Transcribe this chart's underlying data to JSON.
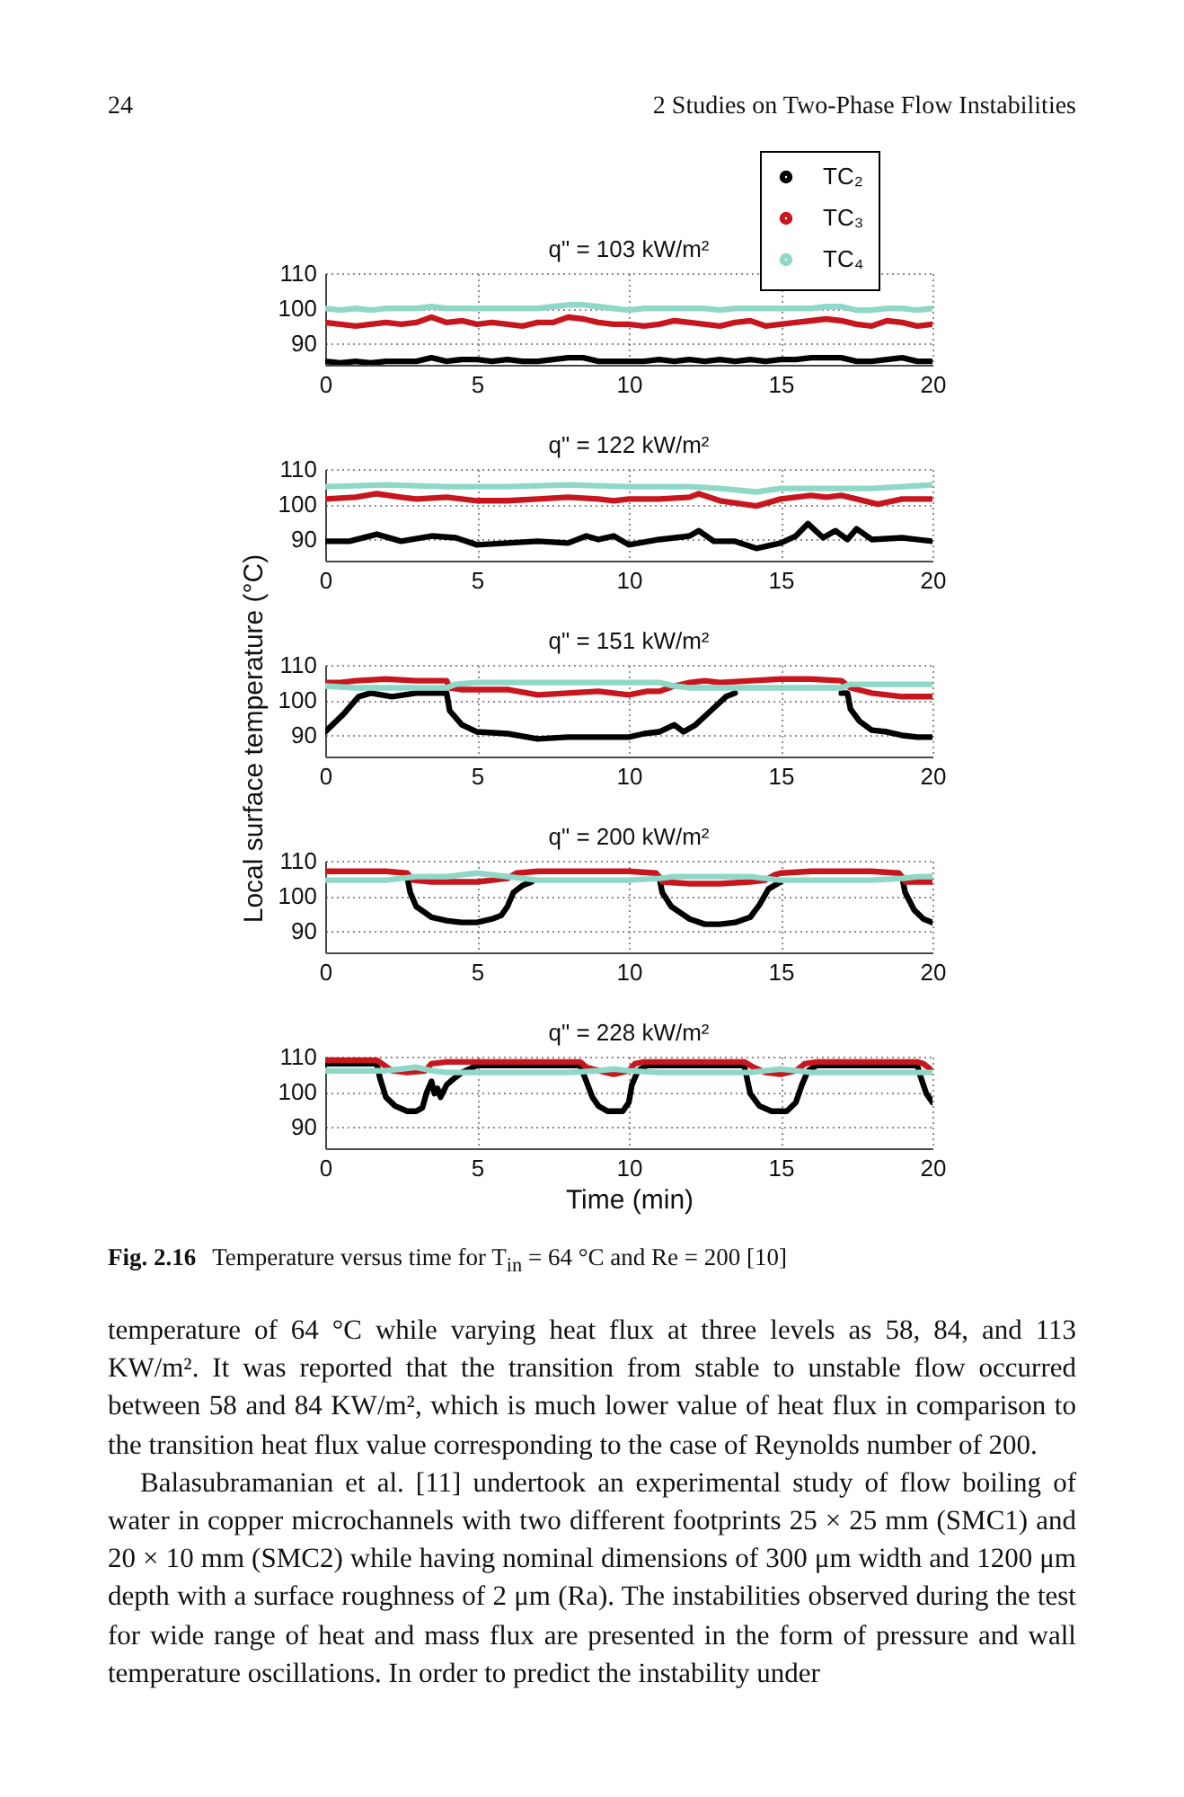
{
  "chart_data": [
    {
      "type": "line",
      "title": "q\" = 103 kW/m²",
      "x": [
        0,
        0.5,
        1,
        1.5,
        2,
        2.5,
        3,
        3.5,
        4,
        4.5,
        5,
        5.5,
        6,
        6.5,
        7,
        7.5,
        8,
        8.5,
        9,
        9.5,
        10,
        10.5,
        11,
        11.5,
        12,
        12.5,
        13,
        13.5,
        14,
        14.5,
        15,
        15.5,
        16,
        16.5,
        17,
        17.5,
        18,
        18.5,
        19,
        19.5,
        20
      ],
      "xlim": [
        0,
        20
      ],
      "xticks": [
        0,
        5,
        10,
        15,
        20
      ],
      "ylim": [
        84,
        110
      ],
      "yticks": [
        90,
        100,
        110
      ],
      "grid": true,
      "legend": "top right",
      "series": [
        {
          "name": "TC₂",
          "color": "#000000",
          "values": [
            85,
            84.5,
            85,
            84.5,
            85,
            85,
            85,
            86,
            85,
            85.5,
            85.5,
            85,
            85.5,
            85,
            85,
            85.5,
            86,
            86,
            85,
            85,
            85,
            85,
            85.5,
            85,
            85.5,
            85,
            85.5,
            85,
            85.5,
            85,
            85.5,
            85.5,
            86,
            86,
            86,
            85,
            85,
            85.5,
            86,
            85,
            85
          ]
        },
        {
          "name": "TC₃",
          "color": "#c8161e",
          "values": [
            96,
            95.5,
            95,
            95.5,
            96,
            95.5,
            96,
            97.5,
            96,
            96.5,
            95.5,
            96,
            95.5,
            95,
            96,
            96,
            97.5,
            97,
            96,
            95.5,
            95.5,
            95,
            95.5,
            96.5,
            96,
            95.5,
            95,
            96,
            96.5,
            95,
            95.5,
            96,
            96.5,
            97,
            96.5,
            95.5,
            95,
            96.5,
            96,
            95,
            95.5
          ]
        },
        {
          "name": "TC₄",
          "color": "#8fd8c8",
          "values": [
            100,
            99.5,
            100,
            99.5,
            100,
            100,
            100,
            100.5,
            100,
            100,
            100,
            100,
            100,
            100,
            100,
            100.5,
            101,
            101,
            100.5,
            100,
            99.5,
            100,
            100,
            100,
            100,
            100,
            99.5,
            100,
            100,
            100,
            100,
            100,
            100,
            100.5,
            100.5,
            99.5,
            99.5,
            100,
            100,
            99.5,
            100
          ]
        }
      ],
      "annotations": [
        "24",
        "2 Studies on Two-Phase Flow Instabilities"
      ]
    },
    {
      "type": "line",
      "title": "q\" = 122 kW/m²",
      "xlim": [
        0,
        20
      ],
      "xticks": [
        0,
        5,
        10,
        15,
        20
      ],
      "ylim": [
        84,
        110
      ],
      "yticks": [
        90,
        100,
        110
      ],
      "grid": true,
      "series": [
        {
          "color": "#000000",
          "x": [
            0,
            0.8,
            1.7,
            2.5,
            3.5,
            4.3,
            5,
            6,
            7,
            8,
            8.6,
            9,
            9.5,
            10,
            11,
            12,
            12.3,
            12.8,
            13.5,
            14.2,
            15,
            15.5,
            15.9,
            16.4,
            16.8,
            17.2,
            17.5,
            18,
            19,
            20
          ],
          "values": [
            89.5,
            89.5,
            91.5,
            89.5,
            91,
            90.5,
            88.5,
            89,
            89.5,
            89,
            91,
            90,
            91,
            88.5,
            90,
            91,
            92.5,
            89.5,
            89.5,
            87.5,
            89,
            91,
            94.5,
            90.5,
            92.5,
            90,
            93,
            90,
            90.5,
            89.5
          ]
        },
        {
          "color": "#c8161e",
          "x": [
            0,
            1,
            1.7,
            2.5,
            3,
            4,
            5,
            6,
            7,
            8,
            9,
            9.5,
            10,
            11,
            12,
            12.3,
            13,
            14.2,
            15,
            15.5,
            16,
            16.5,
            17,
            17.5,
            18.2,
            19,
            20
          ],
          "values": [
            101.5,
            102,
            103,
            102,
            101.5,
            102,
            101,
            101,
            101.5,
            102,
            101.5,
            101,
            101.5,
            101.5,
            102,
            103,
            101,
            99.5,
            101.5,
            102,
            102.5,
            102,
            102.5,
            101.5,
            100,
            101.5,
            101.5
          ]
        },
        {
          "color": "#8fd8c8",
          "x": [
            0,
            2,
            4,
            6,
            8,
            10,
            12,
            13,
            14.2,
            15,
            16,
            17,
            18,
            19,
            20
          ],
          "values": [
            105,
            105.5,
            105,
            105,
            105.5,
            105,
            105,
            104.5,
            103.5,
            104.5,
            104.5,
            104.5,
            104.5,
            105,
            105.5
          ]
        }
      ]
    },
    {
      "type": "line",
      "title": "q\" = 151 kW/m²",
      "ylabel": "Local surface temperature (°C)",
      "xlim": [
        0,
        20
      ],
      "xticks": [
        0,
        5,
        10,
        15,
        20
      ],
      "ylim": [
        84,
        110
      ],
      "yticks": [
        90,
        100,
        110
      ],
      "grid": true,
      "series": [
        {
          "color": "#000000",
          "x": [
            0,
            0.6,
            1.1,
            1.5,
            2.2,
            3,
            4,
            4.1,
            4.5,
            5,
            6,
            7,
            8,
            9,
            10,
            10.5,
            11,
            11.5,
            11.8,
            12.2,
            12.7,
            13.2,
            13.5,
            13.8,
            17,
            17.2,
            17.3,
            17.6,
            18,
            18.5,
            19,
            19.5,
            20
          ],
          "values": [
            91,
            96,
            101,
            102,
            101,
            102,
            102,
            97,
            93,
            91,
            90.5,
            89,
            89.5,
            89.5,
            89.5,
            90.5,
            91,
            93,
            91,
            93,
            97,
            101,
            102,
            null,
            102,
            102,
            97.5,
            94,
            91.5,
            91,
            90,
            89.5,
            89.5
          ]
        },
        {
          "color": "#c8161e",
          "x": [
            0,
            0.5,
            1,
            2,
            3,
            4,
            4.1,
            4.5,
            5,
            6,
            7,
            8,
            9,
            10,
            10.6,
            11,
            11.5,
            12,
            12.5,
            13,
            14,
            15,
            16,
            17,
            17.3,
            18,
            19,
            20
          ],
          "values": [
            105,
            105,
            105.5,
            106,
            105.5,
            105.5,
            103.5,
            103,
            103,
            103,
            101.5,
            102,
            102.5,
            101.5,
            102.5,
            102.5,
            104,
            105,
            105.5,
            105,
            105.5,
            106,
            106,
            105.5,
            103.5,
            102,
            101,
            101
          ]
        },
        {
          "color": "#8fd8c8",
          "x": [
            0,
            1,
            2,
            3,
            4,
            4.3,
            5,
            6,
            7,
            8,
            9,
            10,
            11,
            11.5,
            12,
            13,
            14,
            15,
            16,
            17,
            17.3,
            18,
            19,
            20
          ],
          "values": [
            104,
            103.5,
            103.5,
            103.5,
            103.5,
            104.5,
            105,
            105,
            105,
            105,
            105,
            105,
            105,
            104,
            103.5,
            103.5,
            103.5,
            103.5,
            103.5,
            103.5,
            104.5,
            104.5,
            104.5,
            104.5
          ]
        }
      ]
    },
    {
      "type": "line",
      "title": "q\" = 200 kW/m²",
      "xlim": [
        0,
        20
      ],
      "xticks": [
        0,
        5,
        10,
        15,
        20
      ],
      "ylim": [
        84,
        110
      ],
      "yticks": [
        90,
        100,
        110
      ],
      "grid": true,
      "series": [
        {
          "color": "#000000",
          "x": [
            2.7,
            2.8,
            3,
            3.5,
            4,
            4.5,
            5,
            5.5,
            5.8,
            6,
            6.2,
            6.5,
            6.8,
            7,
            11,
            11.1,
            11.4,
            12,
            12.5,
            13,
            13.5,
            14,
            14.3,
            14.6,
            15,
            15.2,
            19,
            19.1,
            19.4,
            19.7,
            20
          ],
          "values": [
            105.5,
            101,
            97,
            94,
            93,
            92.5,
            92.5,
            93.5,
            94.5,
            97,
            101,
            103,
            104,
            null,
            105.5,
            101,
            97,
            93.5,
            92,
            92,
            92.5,
            94,
            97.5,
            102,
            104,
            null,
            105.5,
            101,
            96,
            93.5,
            92.5
          ]
        },
        {
          "color": "#c8161e",
          "x": [
            0,
            1,
            2,
            2.7,
            2.9,
            3.5,
            4,
            5,
            5.5,
            6,
            6.3,
            7,
            8,
            9,
            10,
            10.9,
            11.1,
            12,
            13,
            14,
            14.5,
            14.8,
            15,
            16,
            17,
            18,
            18.9,
            19.1,
            20
          ],
          "values": [
            107,
            107,
            107,
            106.5,
            104.5,
            104,
            104,
            104,
            104.5,
            105,
            106.5,
            107,
            107,
            107,
            107,
            106.5,
            104,
            103.5,
            103.5,
            104,
            104.5,
            106,
            106.5,
            107,
            107,
            107,
            106.5,
            104,
            104
          ]
        },
        {
          "color": "#8fd8c8",
          "x": [
            0,
            1,
            2,
            3,
            4,
            5,
            5.5,
            6,
            7,
            8,
            9,
            10,
            11,
            11.5,
            12,
            13,
            14,
            14.5,
            15,
            16,
            17,
            18,
            19,
            19.5,
            20
          ],
          "values": [
            104.5,
            104.5,
            104.5,
            105.5,
            105.5,
            106.5,
            106,
            105.5,
            104.5,
            104.5,
            104.5,
            104.5,
            105,
            105.5,
            105.5,
            105.5,
            105.5,
            105,
            104.5,
            104.5,
            104.5,
            104.5,
            105,
            105.5,
            105.5
          ]
        }
      ]
    },
    {
      "type": "line",
      "title": "q\" = 228 kW/m²",
      "xlabel": "Time (min)",
      "xlim": [
        0,
        20
      ],
      "xticks": [
        0,
        5,
        10,
        15,
        20
      ],
      "ylim": [
        84,
        110
      ],
      "yticks": [
        90,
        100,
        110
      ],
      "grid": true,
      "series": [
        {
          "color": "#000000",
          "x": [
            0,
            1.7,
            1.8,
            2,
            2.3,
            2.7,
            3,
            3.2,
            3.35,
            3.5,
            3.6,
            3.7,
            3.8,
            4,
            4.2,
            4.5,
            5,
            8.4,
            8.6,
            8.8,
            9,
            9.3,
            9.8,
            10,
            10.1,
            10.3,
            10.6,
            13.8,
            14,
            14.3,
            14.7,
            15.2,
            15.5,
            15.7,
            15.9,
            16.2,
            19.5,
            19.6,
            19.8,
            20
          ],
          "values": [
            108,
            108,
            104,
            98.5,
            96,
            94.5,
            94.5,
            95.5,
            100,
            103,
            99.5,
            101,
            98.5,
            102,
            103.5,
            105.5,
            107.5,
            107.5,
            103,
            98.5,
            96,
            94.5,
            94.5,
            97,
            102,
            106,
            107.5,
            107.5,
            99.5,
            96,
            94.5,
            94.5,
            97,
            102,
            106,
            107.5,
            107.5,
            104.5,
            99.5,
            97
          ]
        },
        {
          "color": "#c8161e",
          "x": [
            0,
            1.7,
            2.2,
            2.7,
            3.3,
            3.5,
            4,
            8.4,
            8.6,
            9,
            9.5,
            10,
            10.2,
            10.5,
            13.8,
            14.1,
            14.5,
            15,
            15.5,
            15.8,
            16.2,
            19.5,
            19.7,
            20
          ],
          "values": [
            109,
            109,
            106,
            105.5,
            106,
            108,
            108.5,
            108.5,
            107,
            106,
            105,
            106,
            108,
            108.5,
            108.5,
            107,
            105.5,
            105,
            106,
            108,
            108.5,
            108.5,
            108,
            106
          ]
        },
        {
          "color": "#8fd8c8",
          "x": [
            0,
            2,
            2.5,
            3,
            3.5,
            4,
            5,
            8,
            9,
            9.5,
            10,
            11,
            13,
            14,
            14.5,
            15,
            15.5,
            16,
            18,
            19,
            20
          ],
          "values": [
            106,
            106,
            106.5,
            107,
            106,
            105.5,
            105.5,
            105.5,
            106,
            106.5,
            106,
            105.5,
            105.5,
            105.5,
            106,
            106.5,
            106,
            105.5,
            105.5,
            105.5,
            105.5
          ]
        }
      ],
      "annotations": [
        "Fig. 2.16",
        "Temperature versus time for T$_{in}$ = 64 °C and Re = 200 [10]",
        "temperature of 64 °C while varying heat flux at three levels as 58, 84, and 113 KW/m². It was reported that the transition from stable to unstable flow occurred between 58 and 84 KW/m², which is much lower value of heat flux in comparison to the transition heat flux value corresponding to the case of Reynolds number of 200.",
        "Balasubramanian et al. [11] undertook an experimental study of flow boiling of water in copper microchannels with two different footprints 25 × 25 mm (SMC1) and 20 × 10 mm (SMC2) while having nominal dimensions of 300 μm width and 1200 μm depth with a surface roughness of 2 μm (Ra). The instabilities observed during the test for wide range of heat and mass flux are presented in the form of pressure and wall temperature oscillations. In order to predict the instability under"
      ]
    }
  ]
}
